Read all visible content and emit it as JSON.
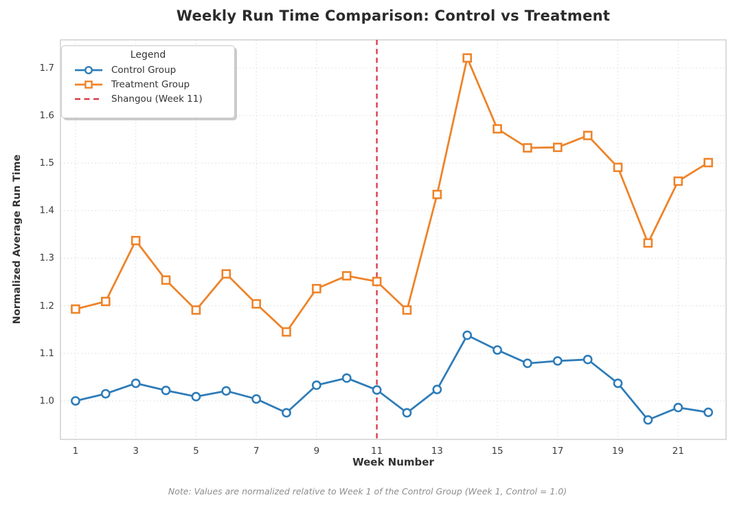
{
  "title": "Weekly Run Time Comparison: Control vs Treatment",
  "note": "Note: Values are normalized relative to Week 1 of the Control Group (Week 1, Control = 1.0)",
  "legend": {
    "title": "Legend",
    "items": [
      {
        "label": "Control Group"
      },
      {
        "label": "Treatment Group"
      },
      {
        "label": "Shangou (Week 11)"
      }
    ]
  },
  "chart_data": {
    "type": "line",
    "title": "Weekly Run Time Comparison: Control vs Treatment",
    "xlabel": "Week Number",
    "ylabel": "Normalized Average Run Time",
    "x": [
      1,
      2,
      3,
      4,
      5,
      6,
      7,
      8,
      9,
      10,
      11,
      12,
      13,
      14,
      15,
      16,
      17,
      18,
      19,
      20,
      21,
      22
    ],
    "series": [
      {
        "name": "Control Group",
        "marker": "circle",
        "color": "#2e7cb8",
        "values": [
          1.0,
          1.015,
          1.037,
          1.022,
          1.009,
          1.021,
          1.004,
          0.975,
          1.033,
          1.048,
          1.023,
          0.975,
          1.024,
          1.138,
          1.107,
          1.079,
          1.084,
          1.087,
          1.037,
          0.96,
          0.986,
          0.976
        ]
      },
      {
        "name": "Treatment Group",
        "marker": "square",
        "color": "#ee8329",
        "values": [
          1.193,
          1.209,
          1.337,
          1.254,
          1.191,
          1.267,
          1.204,
          1.145,
          1.236,
          1.263,
          1.251,
          1.191,
          1.434,
          1.721,
          1.572,
          1.532,
          1.533,
          1.558,
          1.491,
          1.332,
          1.462,
          1.501
        ]
      }
    ],
    "vline": {
      "x": 11,
      "label": "Shangou (Week 11)",
      "color": "#d93848",
      "style": "dashed"
    },
    "x_ticks": [
      1,
      3,
      5,
      7,
      9,
      11,
      13,
      15,
      17,
      19,
      21
    ],
    "y_ticks": [
      1.0,
      1.1,
      1.2,
      1.3,
      1.4,
      1.5,
      1.6,
      1.7
    ],
    "xlim": [
      0.5,
      22.59
    ],
    "ylim": [
      0.919,
      1.759
    ],
    "grid": true,
    "legend_position": "upper left"
  }
}
